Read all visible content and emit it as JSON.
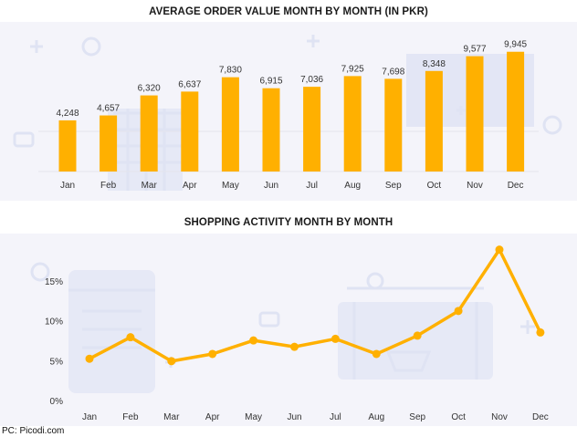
{
  "credit": "PC: Picodi.com",
  "colors": {
    "accent": "#FFB000",
    "panel": "#F4F4FA",
    "text": "#333333",
    "deco": "#E3E6F5"
  },
  "chart_data": [
    {
      "type": "bar",
      "title": "AVERAGE ORDER VALUE MONTH BY MONTH (IN PKR)",
      "categories": [
        "Jan",
        "Feb",
        "Mar",
        "Apr",
        "May",
        "Jun",
        "Jul",
        "Aug",
        "Sep",
        "Oct",
        "Nov",
        "Dec"
      ],
      "values": [
        4248,
        4657,
        6320,
        6637,
        7830,
        6915,
        7036,
        7925,
        7698,
        8348,
        9577,
        9945
      ],
      "value_labels": [
        "4,248",
        "4,657",
        "6,320",
        "6,637",
        "7,830",
        "6,915",
        "7,036",
        "7,925",
        "7,698",
        "8,348",
        "9,577",
        "9,945"
      ],
      "ylim": [
        0,
        10000
      ],
      "xlabel": "",
      "ylabel": "",
      "grid": false
    },
    {
      "type": "line",
      "title": "SHOPPING ACTIVITY MONTH BY MONTH",
      "categories": [
        "Jan",
        "Feb",
        "Mar",
        "Apr",
        "May",
        "Jun",
        "Jul",
        "Aug",
        "Sep",
        "Oct",
        "Nov",
        "Dec"
      ],
      "values": [
        5.3,
        8.0,
        5.0,
        5.9,
        7.6,
        6.8,
        7.8,
        5.9,
        8.2,
        11.3,
        19.0,
        8.6
      ],
      "yticks": [
        0,
        5,
        10,
        15
      ],
      "ytick_labels": [
        "0%",
        "5%",
        "10%",
        "15%"
      ],
      "ylim": [
        0,
        19
      ],
      "xlabel": "",
      "ylabel": "",
      "grid": false
    }
  ]
}
